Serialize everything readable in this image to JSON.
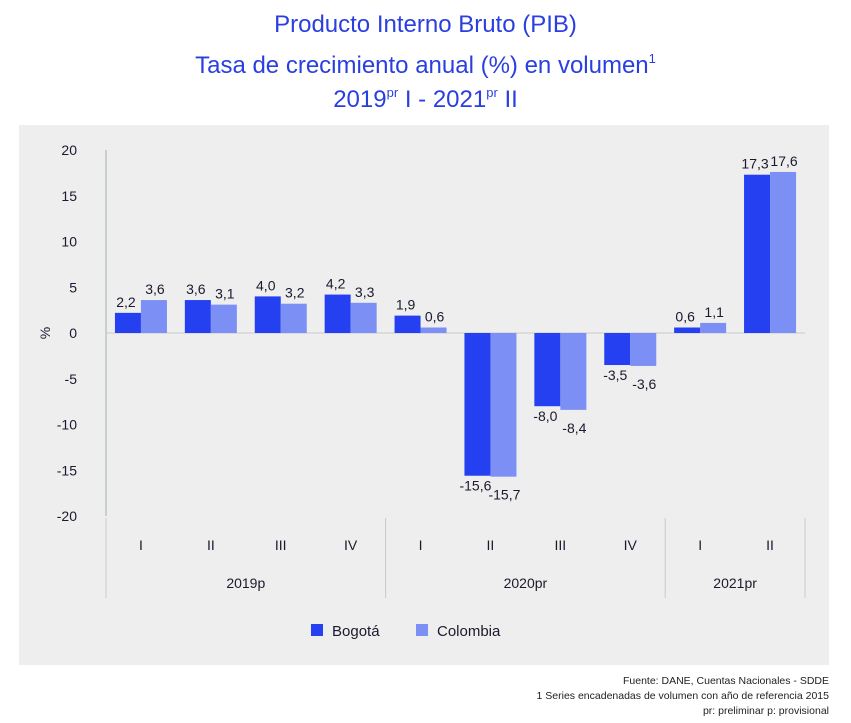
{
  "title": {
    "line1": "Producto Interno Bruto (PIB)",
    "line2": "Tasa de crecimiento anual (%) en volumen",
    "line2_sup": "1",
    "line3_a": "2019",
    "line3_sup_a": "pr",
    "line3_b": " I - 2021",
    "line3_sup_b": "pr",
    "line3_c": " II"
  },
  "footer": {
    "source": "Fuente: DANE, Cuentas Nacionales - SDDE",
    "note1": "1 Series encadenadas de volumen con año de referencia 2015",
    "note2": "pr: preliminar  p: provisional"
  },
  "chart_data": {
    "type": "bar",
    "ylabel": "%",
    "ylim": [
      -20,
      20
    ],
    "yticks": [
      20,
      15,
      10,
      5,
      0,
      -5,
      -10,
      -15,
      -20
    ],
    "categories": [
      "I",
      "II",
      "III",
      "IV",
      "I",
      "II",
      "III",
      "IV",
      "I",
      "II"
    ],
    "groups": [
      {
        "label": "2019p",
        "count": 4
      },
      {
        "label": "2020pr",
        "count": 4
      },
      {
        "label": "2021pr",
        "count": 2
      }
    ],
    "series": [
      {
        "name": "Bogotá",
        "color": "#2440f0",
        "values": [
          2.2,
          3.6,
          4.0,
          4.2,
          1.9,
          -15.6,
          -8.0,
          -3.5,
          0.6,
          17.3
        ],
        "labels": [
          "2,2",
          "3,6",
          "4,0",
          "4,2",
          "1,9",
          "-15,6",
          "-8,0",
          "-3,5",
          "0,6",
          "17,3"
        ]
      },
      {
        "name": "Colombia",
        "color": "#7b8ff5",
        "values": [
          3.6,
          3.1,
          3.2,
          3.3,
          0.6,
          -15.7,
          -8.4,
          -3.6,
          1.1,
          17.6
        ],
        "labels": [
          "3,6",
          "3,1",
          "3,2",
          "3,3",
          "0,6",
          "-15,7",
          "-8,4",
          "-3,6",
          "1,1",
          "17,6"
        ]
      }
    ],
    "legend_position": "bottom",
    "grid": false
  }
}
